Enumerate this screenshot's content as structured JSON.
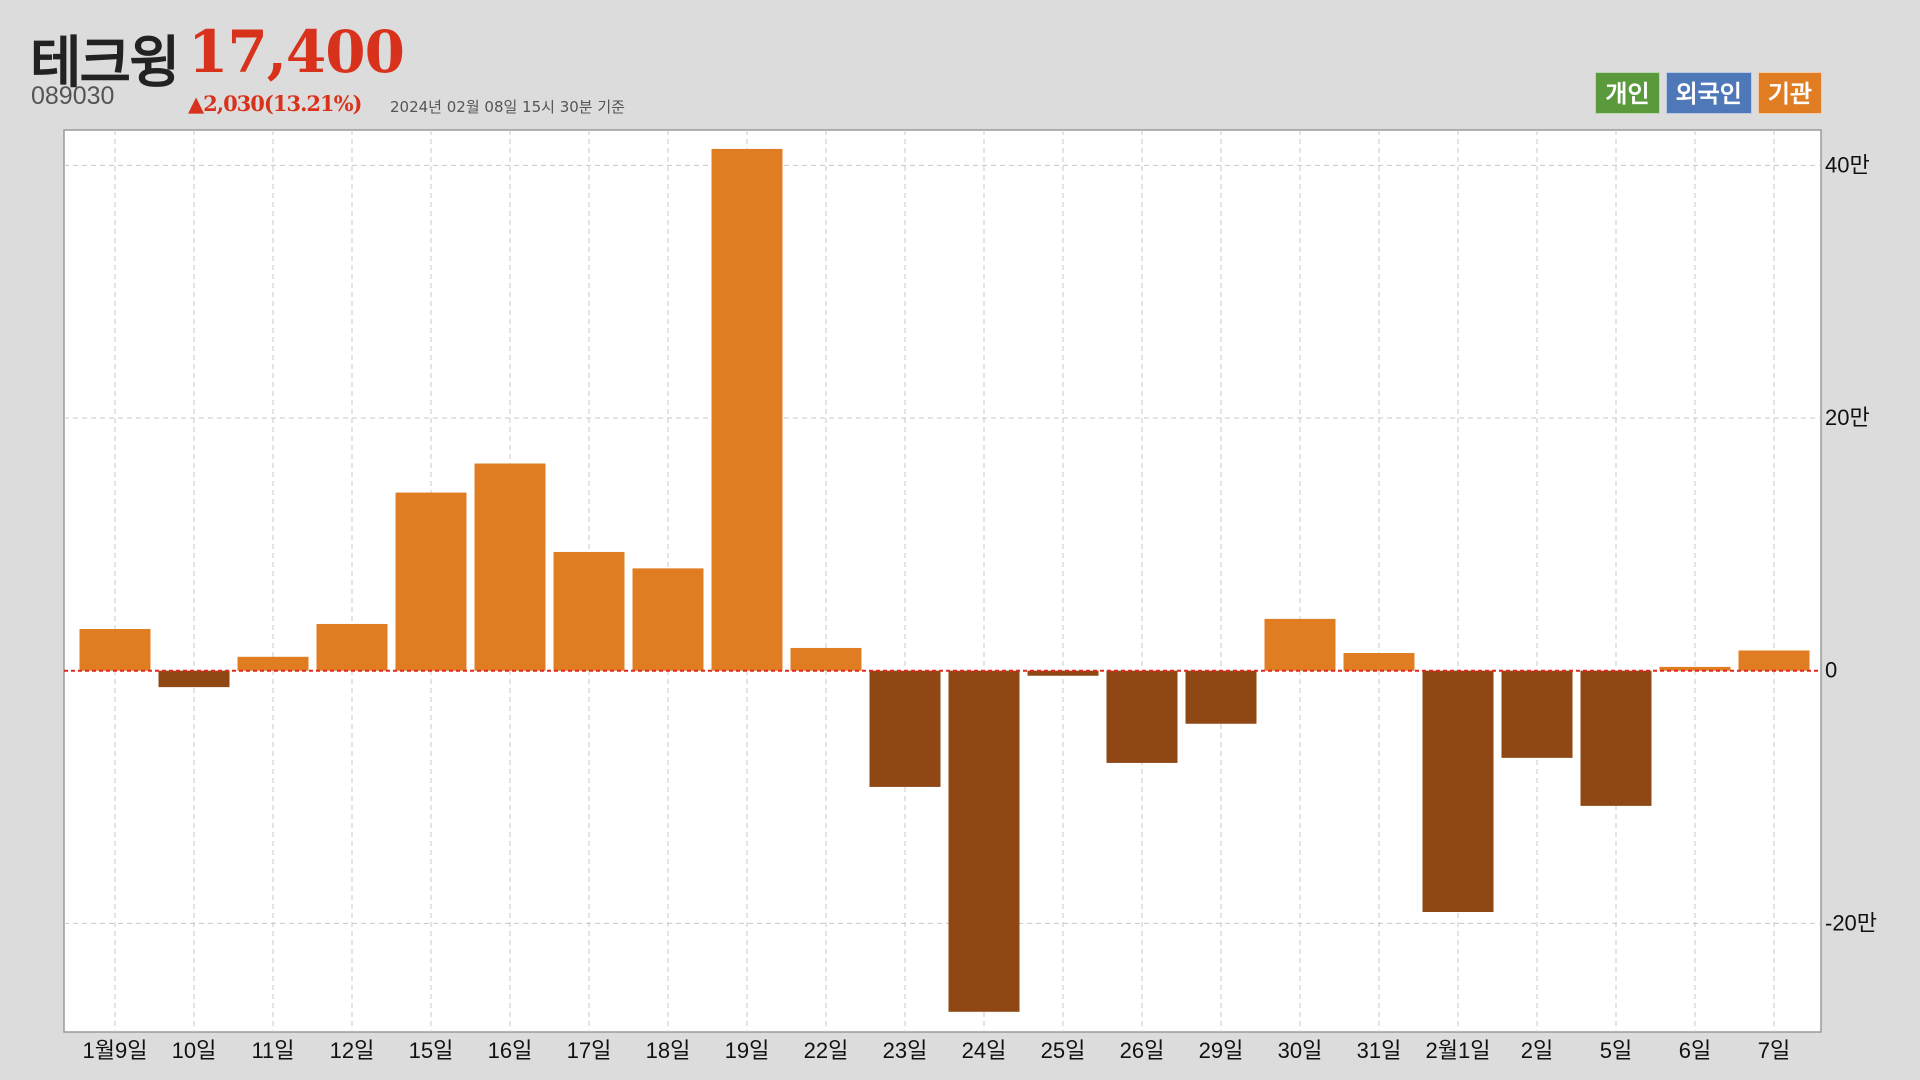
{
  "header": {
    "name": "테크윙",
    "price": "17,400",
    "code": "089030",
    "change": "▲2,030(13.21%)",
    "timestamp": "2024년 02월 08일 15시 30분 기준"
  },
  "legend": [
    {
      "label": "개인",
      "color": "#5b9a3c"
    },
    {
      "label": "외국인",
      "color": "#4e78b8"
    },
    {
      "label": "기관",
      "color": "#e07d22"
    }
  ],
  "colors": {
    "positive": "#e07d22",
    "negative": "#8f4713",
    "zero_line": "#e0291c",
    "grid": "#c8c8c8",
    "plot_bg": "#ffffff",
    "price_red": "#d8321c"
  },
  "chart_data": {
    "type": "bar",
    "series": [
      {
        "name": "기관",
        "values": [
          33000,
          -13000,
          11000,
          37000,
          141000,
          164000,
          94000,
          81000,
          413000,
          18000,
          -92000,
          -270000,
          -4000,
          -73000,
          -42000,
          41000,
          14000,
          -191000,
          -69000,
          -107000,
          3000,
          16000
        ]
      }
    ],
    "categories": [
      "1월9일",
      "10일",
      "11일",
      "12일",
      "15일",
      "16일",
      "17일",
      "18일",
      "19일",
      "22일",
      "23일",
      "24일",
      "25일",
      "26일",
      "29일",
      "30일",
      "31일",
      "2월1일",
      "2일",
      "5일",
      "6일",
      "7일"
    ],
    "ylim": [
      -286000,
      428000
    ],
    "yticks": [
      {
        "value": 400000,
        "label": "40만"
      },
      {
        "value": 200000,
        "label": "20만"
      },
      {
        "value": 0,
        "label": "0"
      },
      {
        "value": -200000,
        "label": "-20만"
      }
    ],
    "grid": true,
    "xlabel": "",
    "ylabel": ""
  }
}
